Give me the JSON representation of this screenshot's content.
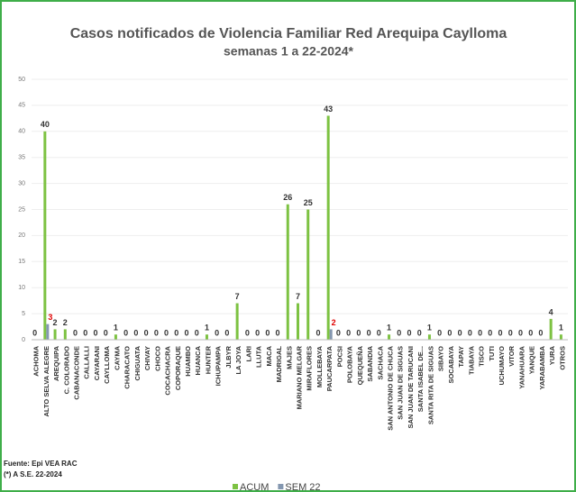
{
  "chart_data": {
    "type": "bar",
    "title": "Casos notificados  de Violencia Familiar Red Arequipa Caylloma",
    "subtitle": "semanas 1 a 22-2024*",
    "source": "Fuente: Epi VEA RAC",
    "note": "(*) A S.E. 22-2024",
    "categories": [
      "ACHOMA",
      "ALTO SELVA ALEGRE",
      "AREQUIPA",
      "C. COLORADO",
      "CABANACONDE",
      "CALLALLI",
      "CAYARANI",
      "CAYLLOMA",
      "CAYMA",
      "CHARACATO",
      "CHIGUATA",
      "CHIVAY",
      "CHOCO",
      "COCACHACRA",
      "COPORAQUE",
      "HUAMBO",
      "HUANCA",
      "HUNTER",
      "ICHUPAMPA",
      "JLBYR",
      "LA JOYA",
      "LARI",
      "LLUTA",
      "MACA",
      "MADRIGAL",
      "MAJES",
      "MARIANO MELGAR",
      "MIRAFLORES",
      "MOLLEBAYA",
      "PAUCARPATA",
      "POCSI",
      "POLOBAYA",
      "QUEQUEÑA",
      "SABANDIA",
      "SACHACA",
      "SAN ANTONIO DE CHUCA",
      "SAN JUAN DE SIGUAS",
      "SAN JUAN DE TARUCANI",
      "SANTA ISABEL DE...",
      "SANTA RITA DE SIGUAS",
      "SIBAYO",
      "SOCABAYA",
      "TAPAY",
      "TIABAYA",
      "TISCO",
      "TUTI",
      "UCHUMAYO",
      "VITOR",
      "YANAHUARA",
      "YANQUE",
      "YARABAMBA",
      "YURA",
      "OTROS"
    ],
    "series": [
      {
        "name": "ACUM",
        "color": "#7dc242",
        "label_color": "#333333",
        "values": [
          0,
          40,
          2,
          2,
          0,
          0,
          0,
          0,
          1,
          0,
          0,
          0,
          0,
          0,
          0,
          0,
          0,
          1,
          0,
          0,
          7,
          0,
          0,
          0,
          0,
          26,
          7,
          25,
          0,
          43,
          0,
          0,
          0,
          0,
          0,
          1,
          0,
          0,
          0,
          1,
          0,
          0,
          0,
          0,
          0,
          0,
          0,
          0,
          0,
          0,
          0,
          4,
          1
        ]
      },
      {
        "name": "SEM 22",
        "color": "#8497b0",
        "label_color": "#e00000",
        "values": [
          null,
          3,
          null,
          null,
          null,
          null,
          null,
          null,
          null,
          null,
          null,
          null,
          null,
          null,
          null,
          null,
          null,
          null,
          null,
          null,
          null,
          null,
          null,
          null,
          null,
          null,
          null,
          null,
          null,
          2,
          null,
          null,
          null,
          null,
          null,
          null,
          null,
          null,
          null,
          null,
          null,
          null,
          null,
          null,
          null,
          null,
          null,
          null,
          null,
          null,
          null,
          null,
          null
        ]
      }
    ],
    "ylim": [
      0,
      50
    ],
    "yticks": [
      0,
      5,
      10,
      15,
      20,
      25,
      30,
      35,
      40,
      45,
      50
    ],
    "grid": true
  }
}
